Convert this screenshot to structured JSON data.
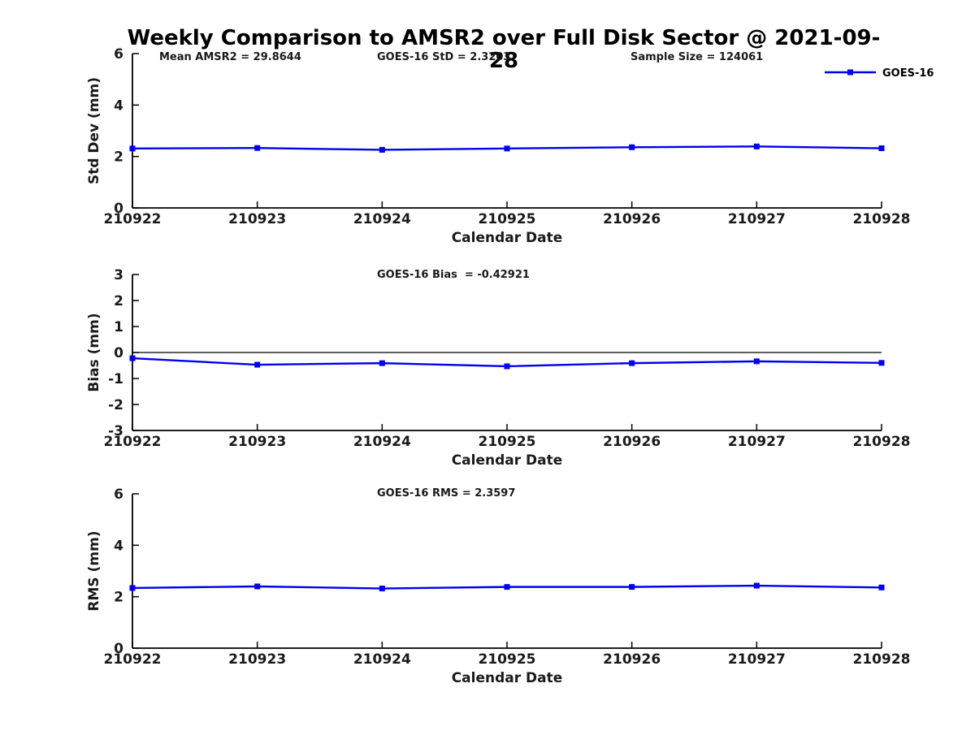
{
  "page": {
    "title": "Weekly Comparison to AMSR2 over Full Disk Sector @ 2021-09-28"
  },
  "colors": {
    "series": "#0000ee",
    "axis": "#000000",
    "text": "#1a1a1a",
    "title": "#000000",
    "zero_line": "#000000"
  },
  "legend": {
    "label": "GOES-16",
    "position": "top-right"
  },
  "chart_data": [
    {
      "type": "line",
      "panel": "std-dev",
      "annotations": [
        "Mean AMSR2 = 29.8644",
        "GOES-16 StD = 2.3203",
        "Sample Size = 124061"
      ],
      "categories": [
        "210922",
        "210923",
        "210924",
        "210925",
        "210926",
        "210927",
        "210928"
      ],
      "series": [
        {
          "name": "GOES-16",
          "values": [
            2.31,
            2.33,
            2.26,
            2.31,
            2.36,
            2.39,
            2.32
          ]
        }
      ],
      "xlabel": "Calendar Date",
      "ylabel": "Std Dev (mm)",
      "ylim": [
        0,
        6
      ],
      "yticks": [
        0,
        2,
        4,
        6
      ],
      "grid": false,
      "legend": true,
      "zero_line": false
    },
    {
      "type": "line",
      "panel": "bias",
      "annotations": [
        "GOES-16 Bias  = -0.42921"
      ],
      "categories": [
        "210922",
        "210923",
        "210924",
        "210925",
        "210926",
        "210927",
        "210928"
      ],
      "series": [
        {
          "name": "GOES-16",
          "values": [
            -0.22,
            -0.47,
            -0.41,
            -0.53,
            -0.41,
            -0.34,
            -0.4
          ]
        }
      ],
      "xlabel": "Calendar Date",
      "ylabel": "Bias (mm)",
      "ylim": [
        -3,
        3
      ],
      "yticks": [
        -3,
        -2,
        -1,
        0,
        1,
        2,
        3
      ],
      "grid": false,
      "legend": false,
      "zero_line": true
    },
    {
      "type": "line",
      "panel": "rms",
      "annotations": [
        "GOES-16 RMS = 2.3597"
      ],
      "categories": [
        "210922",
        "210923",
        "210924",
        "210925",
        "210926",
        "210927",
        "210928"
      ],
      "series": [
        {
          "name": "GOES-16",
          "values": [
            2.34,
            2.4,
            2.32,
            2.38,
            2.38,
            2.43,
            2.36
          ]
        }
      ],
      "xlabel": "Calendar Date",
      "ylabel": "RMS (mm)",
      "ylim": [
        0,
        6
      ],
      "yticks": [
        0,
        2,
        4,
        6
      ],
      "grid": false,
      "legend": false,
      "zero_line": false
    }
  ]
}
